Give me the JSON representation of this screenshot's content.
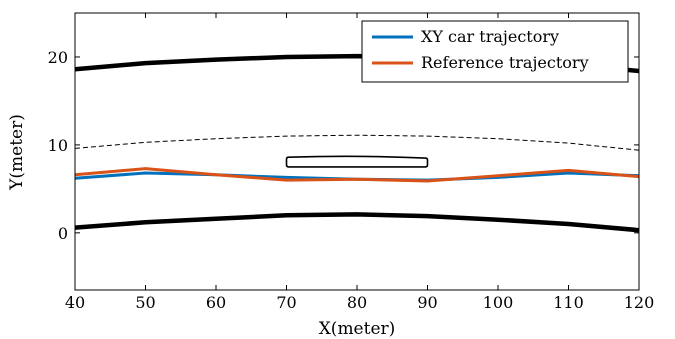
{
  "chart_data": {
    "type": "line",
    "xlabel": "X(meter)",
    "ylabel": "Y(meter)",
    "xlim": [
      40,
      120
    ],
    "ylim": [
      -6.5,
      25
    ],
    "xticks": [
      40,
      50,
      60,
      70,
      80,
      90,
      100,
      110,
      120
    ],
    "yticks": [
      0,
      10,
      20
    ],
    "grid": false,
    "legend": "top-right",
    "series": [
      {
        "name": "XY car trajectory",
        "color": "#0072BD",
        "x": [
          40,
          50,
          60,
          70,
          80,
          90,
          100,
          110,
          120
        ],
        "y": [
          6.2,
          6.8,
          6.6,
          6.3,
          6.1,
          6.0,
          6.3,
          6.8,
          6.5
        ]
      },
      {
        "name": "Reference trajectory",
        "color": "#D95319",
        "x": [
          40,
          50,
          60,
          70,
          80,
          90,
          100,
          110,
          120
        ],
        "y": [
          6.6,
          7.3,
          6.6,
          6.0,
          6.1,
          5.9,
          6.5,
          7.1,
          6.4
        ]
      }
    ],
    "road": {
      "upper_edge": {
        "color": "#000000",
        "x": [
          40,
          50,
          60,
          70,
          80,
          90,
          100,
          110,
          120
        ],
        "y": [
          18.6,
          19.3,
          19.7,
          20.0,
          20.1,
          20.0,
          19.8,
          19.2,
          18.4
        ]
      },
      "lower_edge": {
        "color": "#000000",
        "x": [
          40,
          50,
          60,
          70,
          80,
          90,
          100,
          110,
          120
        ],
        "y": [
          0.6,
          1.2,
          1.6,
          2.0,
          2.1,
          1.9,
          1.5,
          1.0,
          0.3
        ]
      },
      "center_line": {
        "color": "#000000",
        "x": [
          40,
          50,
          60,
          70,
          80,
          90,
          100,
          110,
          120
        ],
        "y": [
          9.6,
          10.3,
          10.7,
          11.0,
          11.1,
          11.0,
          10.7,
          10.2,
          9.4
        ]
      }
    },
    "obstacle": {
      "x_min": 70,
      "x_max": 90,
      "y_top_left": 8.6,
      "y_top_mid": 8.7,
      "y_top_right": 8.5,
      "y_bottom": 7.5
    }
  }
}
